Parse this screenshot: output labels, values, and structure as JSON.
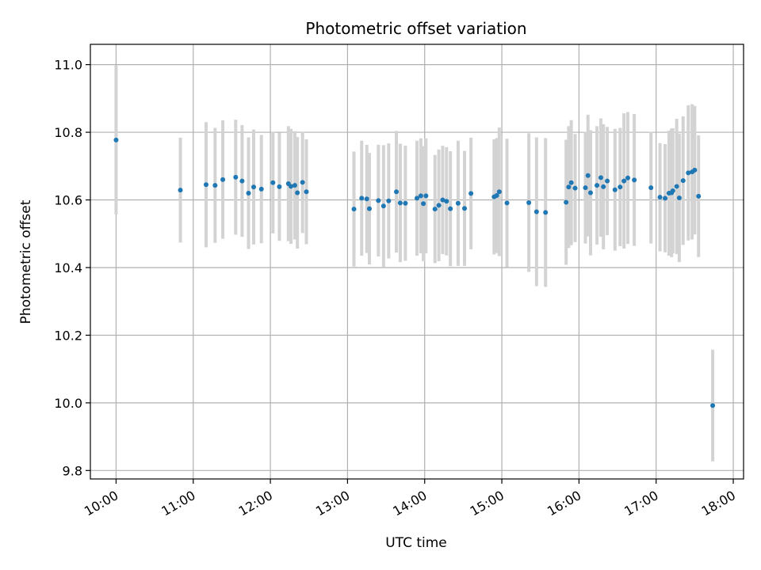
{
  "chart_data": {
    "type": "scatter",
    "title": "Photometric offset variation",
    "xlabel": "UTC time",
    "ylabel": "Photometric offset",
    "x_ticks": [
      "10:00",
      "11:00",
      "12:00",
      "13:00",
      "14:00",
      "15:00",
      "16:00",
      "17:00",
      "18:00"
    ],
    "y_ticks": [
      "9.8",
      "10.0",
      "10.2",
      "10.4",
      "10.6",
      "10.8",
      "11.0"
    ],
    "xlim": [
      "09:40",
      "18:08"
    ],
    "ylim": [
      9.775,
      11.06
    ],
    "grid": true,
    "colors": {
      "point": "#1f77b4",
      "errorbar": "#d3d3d3",
      "grid": "#b0b0b0"
    },
    "series": [
      {
        "x": [
          "10:00",
          "10:50",
          "11:10",
          "11:17",
          "11:23",
          "11:33",
          "11:38",
          "11:43",
          "11:47",
          "11:53",
          "12:02",
          "12:07",
          "12:14",
          "12:16",
          "12:19",
          "12:21",
          "12:25",
          "12:28",
          "13:05",
          "13:11",
          "13:15",
          "13:17",
          "13:24",
          "13:28",
          "13:32",
          "13:38",
          "13:41",
          "13:45",
          "13:54",
          "13:57",
          "13:59",
          "14:01",
          "14:08",
          "14:11",
          "14:14",
          "14:17",
          "14:20",
          "14:26",
          "14:31",
          "14:36",
          "14:54",
          "14:56",
          "14:58",
          "15:04",
          "15:21",
          "15:27",
          "15:34",
          "15:50",
          "15:52",
          "15:54",
          "15:57",
          "16:05",
          "16:07",
          "16:09",
          "16:14",
          "16:17",
          "16:19",
          "16:22",
          "16:28",
          "16:32",
          "16:35",
          "16:38",
          "16:43",
          "16:56",
          "17:03",
          "17:07",
          "17:10",
          "17:12",
          "17:13",
          "17:16",
          "17:18",
          "17:21",
          "17:25",
          "17:28",
          "17:30",
          "17:33"
        ],
        "y": [
          10.777,
          10.629,
          10.645,
          10.643,
          10.66,
          10.667,
          10.656,
          10.62,
          10.638,
          10.632,
          10.651,
          10.639,
          10.648,
          10.64,
          10.643,
          10.621,
          10.652,
          10.624,
          10.573,
          10.605,
          10.603,
          10.574,
          10.598,
          10.582,
          10.597,
          10.624,
          10.591,
          10.59,
          10.605,
          10.612,
          10.589,
          10.612,
          10.573,
          10.584,
          10.6,
          10.596,
          10.574,
          10.59,
          10.575,
          10.619,
          10.609,
          10.613,
          10.624,
          10.591,
          10.592,
          10.565,
          10.563,
          10.593,
          10.638,
          10.651,
          10.635,
          10.636,
          10.672,
          10.621,
          10.643,
          10.666,
          10.639,
          10.656,
          10.63,
          10.638,
          10.656,
          10.665,
          10.659,
          10.636,
          10.608,
          10.605,
          10.62,
          10.621,
          10.627,
          10.64,
          10.606,
          10.657,
          10.68,
          10.683,
          10.688,
          10.611
        ],
        "err": [
          0.22,
          0.155,
          0.185,
          0.17,
          0.175,
          0.17,
          0.165,
          0.165,
          0.17,
          0.16,
          0.15,
          0.16,
          0.17,
          0.17,
          0.16,
          0.165,
          0.15,
          0.155,
          0.17,
          0.17,
          0.16,
          0.165,
          0.165,
          0.18,
          0.17,
          0.18,
          0.175,
          0.17,
          0.17,
          0.17,
          0.17,
          0.17,
          0.16,
          0.165,
          0.16,
          0.16,
          0.17,
          0.185,
          0.17,
          0.165,
          0.17,
          0.17,
          0.19,
          0.19,
          0.205,
          0.22,
          0.22,
          0.185,
          0.18,
          0.185,
          0.16,
          0.165,
          0.18,
          0.185,
          0.175,
          0.175,
          0.185,
          0.16,
          0.18,
          0.175,
          0.2,
          0.195,
          0.195,
          0.165,
          0.16,
          0.16,
          0.185,
          0.19,
          0.185,
          0.2,
          0.19,
          0.19,
          0.2,
          0.2,
          0.19,
          0.18
        ]
      },
      {
        "x": [
          "17:44"
        ],
        "y": [
          9.992
        ],
        "err": [
          0.165
        ]
      }
    ]
  }
}
